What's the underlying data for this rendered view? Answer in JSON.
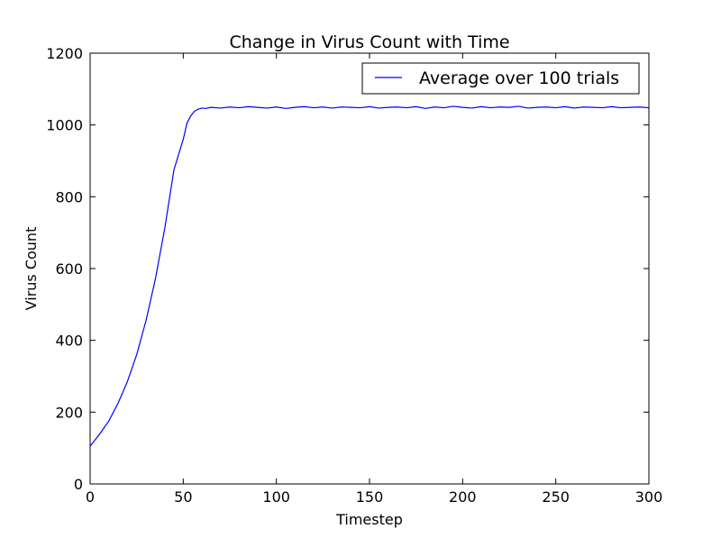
{
  "chart_data": {
    "type": "line",
    "title": "Change in Virus Count with Time",
    "xlabel": "Timestep",
    "ylabel": "Virus Count",
    "xlim": [
      0,
      300
    ],
    "ylim": [
      0,
      1200
    ],
    "xticks": [
      "0",
      "50",
      "100",
      "150",
      "200",
      "250",
      "300"
    ],
    "yticks": [
      "0",
      "200",
      "400",
      "600",
      "800",
      "1000",
      "1200"
    ],
    "grid": false,
    "legend_position": "top-right",
    "series": [
      {
        "name": "Average over 100 trials",
        "color": "#0000ff",
        "x": [
          0,
          5,
          10,
          15,
          20,
          25,
          30,
          35,
          40,
          45,
          50,
          52,
          54,
          56,
          58,
          60,
          62,
          65,
          70,
          75,
          80,
          85,
          90,
          95,
          100,
          105,
          110,
          115,
          120,
          125,
          130,
          135,
          140,
          145,
          150,
          155,
          160,
          165,
          170,
          175,
          180,
          185,
          190,
          195,
          200,
          205,
          210,
          215,
          220,
          225,
          230,
          235,
          240,
          245,
          250,
          255,
          260,
          265,
          270,
          275,
          280,
          285,
          290,
          295,
          300
        ],
        "y": [
          105,
          138,
          175,
          225,
          285,
          360,
          455,
          570,
          710,
          875,
          960,
          1005,
          1025,
          1038,
          1044,
          1047,
          1046,
          1049,
          1047,
          1050,
          1048,
          1051,
          1049,
          1047,
          1050,
          1046,
          1049,
          1051,
          1048,
          1050,
          1047,
          1050,
          1049,
          1048,
          1051,
          1047,
          1049,
          1050,
          1048,
          1051,
          1046,
          1050,
          1048,
          1052,
          1049,
          1047,
          1051,
          1048,
          1050,
          1049,
          1052,
          1047,
          1049,
          1050,
          1048,
          1051,
          1047,
          1050,
          1049,
          1048,
          1051,
          1048,
          1049,
          1050,
          1048
        ]
      }
    ]
  }
}
